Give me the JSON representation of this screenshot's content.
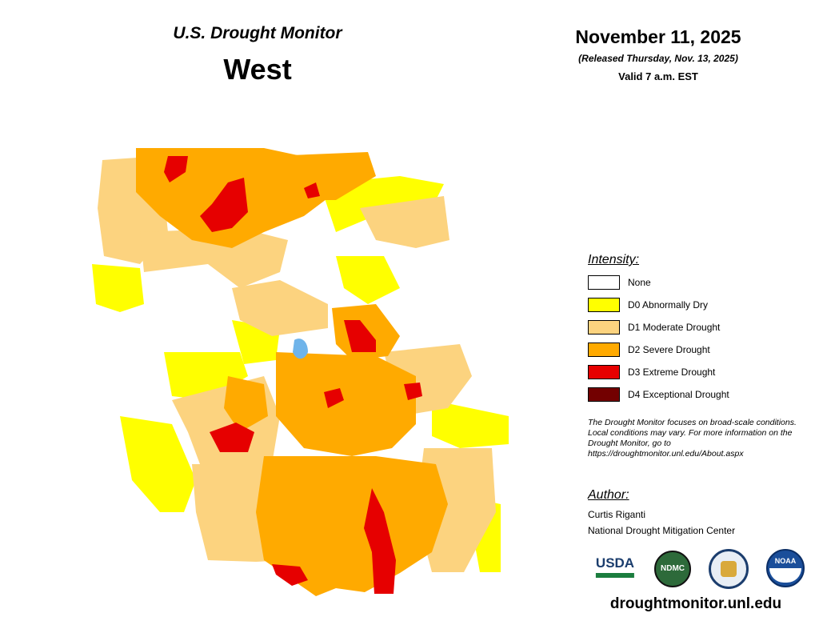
{
  "header": {
    "program": "U.S. Drought Monitor",
    "region": "West",
    "date": "November 11, 2025",
    "released": "(Released Thursday, Nov. 13, 2025)",
    "valid": "Valid 7 a.m. EST"
  },
  "legend": {
    "title": "Intensity:",
    "items": [
      {
        "label": "None",
        "color": "#ffffff"
      },
      {
        "label": "D0 Abnormally Dry",
        "color": "#ffff00"
      },
      {
        "label": "D1 Moderate Drought",
        "color": "#fcd37f"
      },
      {
        "label": "D2 Severe Drought",
        "color": "#ffaa00"
      },
      {
        "label": "D3 Extreme Drought",
        "color": "#e60000"
      },
      {
        "label": "D4 Exceptional Drought",
        "color": "#730000"
      }
    ]
  },
  "note": "The Drought Monitor focuses on broad-scale conditions. Local conditions may vary. For more information on the Drought Monitor, go to https://droughtmonitor.unl.edu/About.aspx",
  "author": {
    "title": "Author:",
    "name": "Curtis Riganti",
    "organization": "National Drought Mitigation Center"
  },
  "logos": [
    "USDA",
    "NDMC",
    "NOAA"
  ],
  "url": "droughtmonitor.unl.edu"
}
